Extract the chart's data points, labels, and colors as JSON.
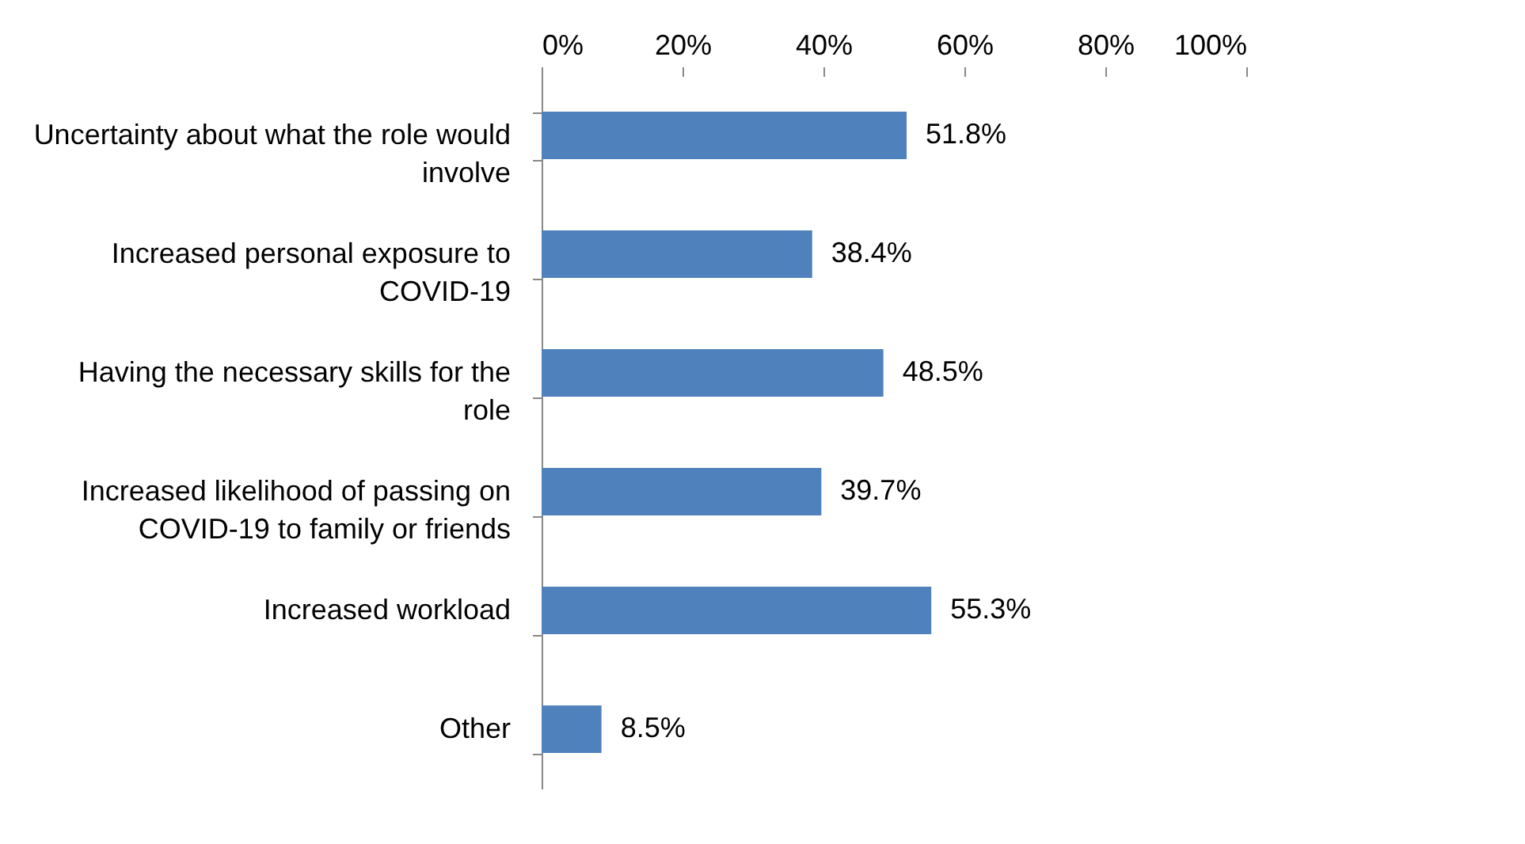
{
  "chart_data": {
    "type": "bar",
    "orientation": "horizontal",
    "categories": [
      "Uncertainty about what the role would involve",
      "Increased personal exposure to COVID-19",
      "Having the necessary skills for the role",
      "Increased likelihood of passing on COVID-19 to family or friends",
      "Increased workload",
      "Other"
    ],
    "values": [
      51.8,
      38.4,
      48.5,
      39.7,
      55.3,
      8.5
    ],
    "value_labels": [
      "51.8%",
      "38.4%",
      "48.5%",
      "39.7%",
      "55.3%",
      "8.5%"
    ],
    "color": "#4f81bd",
    "xlim": [
      0,
      100
    ],
    "xticks": [
      {
        "value": 0,
        "label": "0%"
      },
      {
        "value": 20,
        "label": "20%"
      },
      {
        "value": 40,
        "label": "40%"
      },
      {
        "value": 60,
        "label": "60%"
      },
      {
        "value": 80,
        "label": "80%"
      },
      {
        "value": 100,
        "label": "100%"
      }
    ],
    "grid": false
  }
}
